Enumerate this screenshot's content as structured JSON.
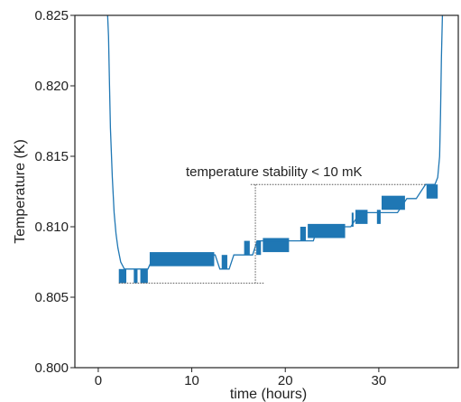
{
  "chart_data": {
    "type": "line",
    "title": "",
    "xlabel": "time (hours)",
    "ylabel": "Temperature (K)",
    "xlim": [
      -2.5,
      38.5
    ],
    "ylim": [
      0.8,
      0.825
    ],
    "xticks": [
      0,
      10,
      20,
      30
    ],
    "xtick_labels": [
      "0",
      "10",
      "20",
      "30"
    ],
    "yticks": [
      0.8,
      0.805,
      0.81,
      0.815,
      0.82,
      0.825
    ],
    "ytick_labels": [
      "0.800",
      "0.805",
      "0.810",
      "0.815",
      "0.820",
      "0.825"
    ],
    "grid": false,
    "line_color": "#1f77b4",
    "annotation": {
      "text": "temperature stability < 10 mK",
      "low_level": 0.806,
      "low_x_range": [
        2.2,
        17.8
      ],
      "high_level": 0.813,
      "high_x_range": [
        16.3,
        35.0
      ],
      "bracket_x": 16.8,
      "line_color": "#555555"
    },
    "series": [
      {
        "points": [
          [
            1.0,
            0.825
          ],
          [
            1.1,
            0.8235
          ],
          [
            1.2,
            0.82
          ],
          [
            1.3,
            0.817
          ],
          [
            1.5,
            0.8135
          ],
          [
            1.7,
            0.811
          ],
          [
            1.9,
            0.8095
          ],
          [
            2.1,
            0.8085
          ],
          [
            2.4,
            0.8075
          ],
          [
            2.8,
            0.807
          ],
          [
            3.5,
            0.807
          ],
          [
            4.3,
            0.807
          ],
          [
            4.6,
            0.807
          ],
          [
            5.3,
            0.807
          ],
          [
            6.0,
            0.808
          ],
          [
            12.5,
            0.808
          ],
          [
            13.0,
            0.807
          ],
          [
            14.0,
            0.807
          ],
          [
            14.5,
            0.808
          ],
          [
            16.5,
            0.808
          ],
          [
            17.0,
            0.809
          ],
          [
            23.0,
            0.809
          ],
          [
            23.5,
            0.81
          ],
          [
            27.0,
            0.81
          ],
          [
            28.0,
            0.811
          ],
          [
            32.0,
            0.811
          ],
          [
            33.0,
            0.812
          ],
          [
            34.0,
            0.812
          ],
          [
            35.0,
            0.813
          ],
          [
            36.0,
            0.813
          ],
          [
            36.3,
            0.8135
          ],
          [
            36.5,
            0.815
          ],
          [
            36.6,
            0.818
          ],
          [
            36.7,
            0.822
          ],
          [
            36.8,
            0.825
          ]
        ],
        "noise_bands": [
          {
            "x": [
              2.2,
              3.0
            ],
            "range": [
              0.806,
              0.807
            ]
          },
          {
            "x": [
              3.8,
              4.2
            ],
            "range": [
              0.806,
              0.807
            ]
          },
          {
            "x": [
              4.5,
              5.3
            ],
            "range": [
              0.806,
              0.807
            ]
          },
          {
            "x": [
              5.5,
              12.4
            ],
            "range": [
              0.8072,
              0.8082
            ]
          },
          {
            "x": [
              13.2,
              13.8
            ],
            "range": [
              0.807,
              0.808
            ]
          },
          {
            "x": [
              15.6,
              16.2
            ],
            "range": [
              0.808,
              0.809
            ]
          },
          {
            "x": [
              16.9,
              17.4
            ],
            "range": [
              0.808,
              0.809
            ]
          },
          {
            "x": [
              17.6,
              20.4
            ],
            "range": [
              0.8082,
              0.8092
            ]
          },
          {
            "x": [
              21.6,
              22.2
            ],
            "range": [
              0.809,
              0.81
            ]
          },
          {
            "x": [
              22.4,
              26.4
            ],
            "range": [
              0.8092,
              0.8102
            ]
          },
          {
            "x": [
              27.1,
              27.3
            ],
            "range": [
              0.81,
              0.811
            ]
          },
          {
            "x": [
              27.5,
              28.8
            ],
            "range": [
              0.8102,
              0.8112
            ]
          },
          {
            "x": [
              29.8,
              30.2
            ],
            "range": [
              0.8102,
              0.8112
            ]
          },
          {
            "x": [
              30.3,
              32.8
            ],
            "range": [
              0.8112,
              0.8122
            ]
          },
          {
            "x": [
              35.1,
              36.3
            ],
            "range": [
              0.812,
              0.813
            ]
          }
        ]
      }
    ]
  }
}
